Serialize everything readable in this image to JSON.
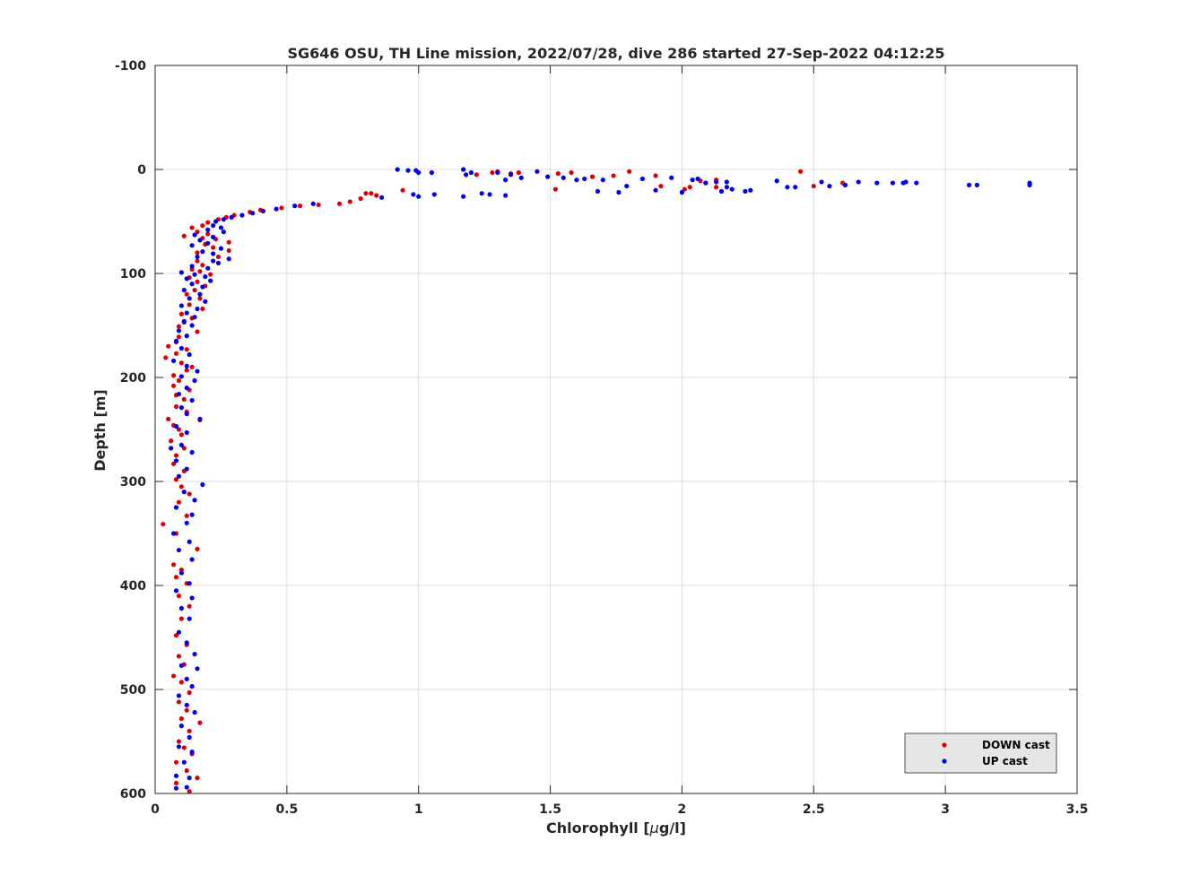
{
  "chart_data": {
    "type": "scatter",
    "title": "SG646 OSU, TH Line mission, 2022/07/28, dive 286 started 27-Sep-2022 04:12:25",
    "xlabel_prefix": "Chlorophyll [",
    "xlabel_unit_symbol": "μ",
    "xlabel_suffix": "g/l]",
    "ylabel": "Depth [m]",
    "xlim": [
      0,
      3.5
    ],
    "ylim": [
      -100,
      600
    ],
    "y_reversed": true,
    "grid": true,
    "xticks": [
      "0",
      "0.5",
      "1",
      "1.5",
      "2",
      "2.5",
      "3",
      "3.5"
    ],
    "yticks": [
      "-100",
      "0",
      "100",
      "200",
      "300",
      "400",
      "500",
      "600"
    ],
    "legend_position": "bottom-right",
    "colors": {
      "down": "#dd0000",
      "up": "#0000ee"
    },
    "series": [
      {
        "name": "DOWN cast",
        "color": "#dd0000",
        "points": [
          [
            1.22,
            5
          ],
          [
            1.28,
            3
          ],
          [
            1.3,
            2
          ],
          [
            1.35,
            4
          ],
          [
            1.38,
            3
          ],
          [
            1.53,
            4
          ],
          [
            1.58,
            3
          ],
          [
            1.52,
            19
          ],
          [
            1.66,
            7
          ],
          [
            1.74,
            6
          ],
          [
            1.8,
            2
          ],
          [
            1.9,
            6
          ],
          [
            1.92,
            16
          ],
          [
            2.01,
            19
          ],
          [
            2.03,
            17
          ],
          [
            2.07,
            11
          ],
          [
            2.09,
            13
          ],
          [
            2.13,
            17
          ],
          [
            2.13,
            10
          ],
          [
            2.45,
            2
          ],
          [
            2.5,
            16
          ],
          [
            2.61,
            13
          ],
          [
            0.94,
            20
          ],
          [
            0.84,
            25
          ],
          [
            0.8,
            23
          ],
          [
            0.82,
            23
          ],
          [
            0.78,
            28
          ],
          [
            0.74,
            31
          ],
          [
            0.7,
            33
          ],
          [
            0.62,
            34
          ],
          [
            0.55,
            35
          ],
          [
            0.48,
            37
          ],
          [
            0.4,
            39
          ],
          [
            0.36,
            41
          ],
          [
            0.3,
            44
          ],
          [
            0.27,
            46
          ],
          [
            0.24,
            48
          ],
          [
            0.2,
            51
          ],
          [
            0.18,
            54
          ],
          [
            0.14,
            56
          ],
          [
            0.16,
            60
          ],
          [
            0.2,
            62
          ],
          [
            0.11,
            64
          ],
          [
            0.18,
            66
          ],
          [
            0.23,
            67
          ],
          [
            0.28,
            70
          ],
          [
            0.19,
            72
          ],
          [
            0.22,
            75
          ],
          [
            0.28,
            78
          ],
          [
            0.16,
            80
          ],
          [
            0.24,
            84
          ],
          [
            0.16,
            88
          ],
          [
            0.18,
            92
          ],
          [
            0.14,
            96
          ],
          [
            0.17,
            98
          ],
          [
            0.21,
            101
          ],
          [
            0.13,
            104
          ],
          [
            0.16,
            108
          ],
          [
            0.19,
            112
          ],
          [
            0.15,
            116
          ],
          [
            0.12,
            120
          ],
          [
            0.17,
            124
          ],
          [
            0.13,
            130
          ],
          [
            0.18,
            134
          ],
          [
            0.1,
            139
          ],
          [
            0.14,
            143
          ],
          [
            0.11,
            147
          ],
          [
            0.09,
            151
          ],
          [
            0.16,
            156
          ],
          [
            0.09,
            161
          ],
          [
            0.08,
            166
          ],
          [
            0.05,
            170
          ],
          [
            0.12,
            173
          ],
          [
            0.08,
            177
          ],
          [
            0.04,
            181
          ],
          [
            0.1,
            186
          ],
          [
            0.14,
            190
          ],
          [
            0.12,
            193
          ],
          [
            0.07,
            198
          ],
          [
            0.09,
            203
          ],
          [
            0.07,
            208
          ],
          [
            0.13,
            212
          ],
          [
            0.08,
            217
          ],
          [
            0.11,
            221
          ],
          [
            0.08,
            228
          ],
          [
            0.12,
            233
          ],
          [
            0.05,
            240
          ],
          [
            0.17,
            241
          ],
          [
            0.07,
            246
          ],
          [
            0.09,
            250
          ],
          [
            0.1,
            255
          ],
          [
            0.06,
            261
          ],
          [
            0.11,
            268
          ],
          [
            0.08,
            275
          ],
          [
            0.07,
            283
          ],
          [
            0.11,
            290
          ],
          [
            0.08,
            298
          ],
          [
            0.1,
            305
          ],
          [
            0.13,
            312
          ],
          [
            0.09,
            320
          ],
          [
            0.03,
            341
          ],
          [
            0.12,
            333
          ],
          [
            0.08,
            350
          ],
          [
            0.16,
            365
          ],
          [
            0.07,
            380
          ],
          [
            0.1,
            385
          ],
          [
            0.08,
            392
          ],
          [
            0.12,
            398
          ],
          [
            0.09,
            410
          ],
          [
            0.13,
            420
          ],
          [
            0.1,
            432
          ],
          [
            0.08,
            448
          ],
          [
            0.12,
            457
          ],
          [
            0.09,
            468
          ],
          [
            0.11,
            476
          ],
          [
            0.07,
            487
          ],
          [
            0.1,
            493
          ],
          [
            0.13,
            503
          ],
          [
            0.09,
            512
          ],
          [
            0.12,
            520
          ],
          [
            0.1,
            528
          ],
          [
            0.17,
            532
          ],
          [
            0.13,
            540
          ],
          [
            0.09,
            550
          ],
          [
            0.11,
            556
          ],
          [
            0.14,
            562
          ],
          [
            0.08,
            570
          ],
          [
            0.12,
            578
          ],
          [
            0.16,
            585
          ],
          [
            0.08,
            590
          ],
          [
            0.13,
            598
          ]
        ]
      },
      {
        "name": "UP cast",
        "color": "#0000ee",
        "points": [
          [
            0.92,
            0
          ],
          [
            0.96,
            1
          ],
          [
            0.99,
            1
          ],
          [
            1.0,
            3
          ],
          [
            1.05,
            3
          ],
          [
            1.17,
            0
          ],
          [
            1.18,
            5
          ],
          [
            1.2,
            3
          ],
          [
            1.24,
            23
          ],
          [
            1.27,
            24
          ],
          [
            1.3,
            3
          ],
          [
            1.33,
            10
          ],
          [
            1.35,
            5
          ],
          [
            1.39,
            8
          ],
          [
            1.45,
            2
          ],
          [
            1.49,
            7
          ],
          [
            1.55,
            8
          ],
          [
            1.6,
            10
          ],
          [
            1.63,
            9
          ],
          [
            1.68,
            21
          ],
          [
            1.7,
            10
          ],
          [
            1.76,
            22
          ],
          [
            1.79,
            16
          ],
          [
            1.85,
            9
          ],
          [
            1.9,
            20
          ],
          [
            1.96,
            8
          ],
          [
            2.0,
            22
          ],
          [
            2.04,
            10
          ],
          [
            2.06,
            9
          ],
          [
            2.09,
            13
          ],
          [
            2.13,
            12
          ],
          [
            2.15,
            21
          ],
          [
            2.17,
            12
          ],
          [
            2.17,
            17
          ],
          [
            2.19,
            19
          ],
          [
            2.24,
            21
          ],
          [
            2.26,
            20
          ],
          [
            2.36,
            11
          ],
          [
            2.4,
            17
          ],
          [
            2.43,
            17
          ],
          [
            2.53,
            12
          ],
          [
            2.56,
            16
          ],
          [
            2.62,
            15
          ],
          [
            2.67,
            12
          ],
          [
            2.74,
            13
          ],
          [
            2.8,
            13
          ],
          [
            2.84,
            13
          ],
          [
            2.85,
            12
          ],
          [
            2.89,
            13
          ],
          [
            3.09,
            15
          ],
          [
            3.12,
            15
          ],
          [
            3.32,
            13
          ],
          [
            3.32,
            15
          ],
          [
            0.98,
            24
          ],
          [
            1.06,
            24
          ],
          [
            1.0,
            26
          ],
          [
            1.17,
            26
          ],
          [
            1.33,
            25
          ],
          [
            0.86,
            27
          ],
          [
            0.6,
            33
          ],
          [
            0.53,
            35
          ],
          [
            0.46,
            38
          ],
          [
            0.41,
            40
          ],
          [
            0.37,
            42
          ],
          [
            0.33,
            44
          ],
          [
            0.29,
            46
          ],
          [
            0.26,
            48
          ],
          [
            0.23,
            50
          ],
          [
            0.22,
            54
          ],
          [
            0.25,
            56
          ],
          [
            0.2,
            58
          ],
          [
            0.26,
            60
          ],
          [
            0.15,
            63
          ],
          [
            0.22,
            65
          ],
          [
            0.17,
            68
          ],
          [
            0.2,
            71
          ],
          [
            0.14,
            73
          ],
          [
            0.25,
            76
          ],
          [
            0.18,
            79
          ],
          [
            0.22,
            81
          ],
          [
            0.16,
            84
          ],
          [
            0.28,
            86
          ],
          [
            0.22,
            88
          ],
          [
            0.24,
            90
          ],
          [
            0.14,
            93
          ],
          [
            0.2,
            95
          ],
          [
            0.1,
            99
          ],
          [
            0.15,
            101
          ],
          [
            0.19,
            103
          ],
          [
            0.12,
            105
          ],
          [
            0.21,
            107
          ],
          [
            0.14,
            110
          ],
          [
            0.18,
            113
          ],
          [
            0.11,
            116
          ],
          [
            0.17,
            120
          ],
          [
            0.13,
            124
          ],
          [
            0.19,
            127
          ],
          [
            0.1,
            131
          ],
          [
            0.16,
            134
          ],
          [
            0.12,
            138
          ],
          [
            0.15,
            142
          ],
          [
            0.11,
            146
          ],
          [
            0.14,
            150
          ],
          [
            0.09,
            155
          ],
          [
            0.12,
            160
          ],
          [
            0.08,
            165
          ],
          [
            0.1,
            172
          ],
          [
            0.13,
            178
          ],
          [
            0.07,
            184
          ],
          [
            0.12,
            189
          ],
          [
            0.16,
            194
          ],
          [
            0.1,
            199
          ],
          [
            0.15,
            203
          ],
          [
            0.12,
            210
          ],
          [
            0.09,
            216
          ],
          [
            0.14,
            222
          ],
          [
            0.1,
            229
          ],
          [
            0.12,
            235
          ],
          [
            0.17,
            240
          ],
          [
            0.08,
            247
          ],
          [
            0.12,
            253
          ],
          [
            0.06,
            268
          ],
          [
            0.1,
            265
          ],
          [
            0.14,
            272
          ],
          [
            0.08,
            280
          ],
          [
            0.12,
            288
          ],
          [
            0.09,
            295
          ],
          [
            0.18,
            303
          ],
          [
            0.11,
            310
          ],
          [
            0.15,
            318
          ],
          [
            0.08,
            325
          ],
          [
            0.14,
            332
          ],
          [
            0.12,
            340
          ],
          [
            0.07,
            350
          ],
          [
            0.13,
            358
          ],
          [
            0.09,
            366
          ],
          [
            0.14,
            375
          ],
          [
            0.1,
            388
          ],
          [
            0.13,
            398
          ],
          [
            0.08,
            405
          ],
          [
            0.14,
            412
          ],
          [
            0.1,
            422
          ],
          [
            0.13,
            432
          ],
          [
            0.09,
            445
          ],
          [
            0.12,
            455
          ],
          [
            0.15,
            466
          ],
          [
            0.1,
            477
          ],
          [
            0.16,
            480
          ],
          [
            0.12,
            490
          ],
          [
            0.14,
            497
          ],
          [
            0.09,
            506
          ],
          [
            0.12,
            515
          ],
          [
            0.15,
            522
          ],
          [
            0.1,
            535
          ],
          [
            0.13,
            546
          ],
          [
            0.09,
            555
          ],
          [
            0.14,
            560
          ],
          [
            0.11,
            570
          ],
          [
            0.08,
            583
          ],
          [
            0.13,
            585
          ],
          [
            0.08,
            595
          ],
          [
            0.12,
            594
          ]
        ]
      }
    ]
  }
}
